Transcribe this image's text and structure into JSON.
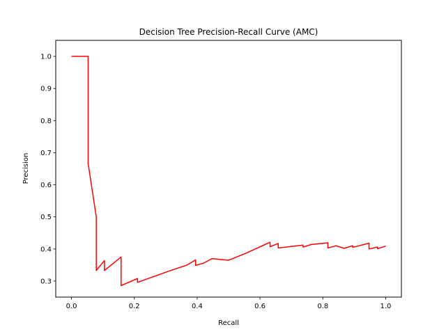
{
  "chart_data": {
    "type": "line",
    "title": "Decision Tree Precision-Recall Curve (AMC)",
    "xlabel": "Recall",
    "ylabel": "Precision",
    "xlim": [
      -0.05,
      1.05
    ],
    "ylim": [
      0.25,
      1.05
    ],
    "xticks": [
      0.0,
      0.2,
      0.4,
      0.6,
      0.8,
      1.0
    ],
    "xtick_labels": [
      "0.0",
      "0.2",
      "0.4",
      "0.6",
      "0.8",
      "1.0"
    ],
    "yticks": [
      0.3,
      0.4,
      0.5,
      0.6,
      0.7,
      0.8,
      0.9,
      1.0
    ],
    "ytick_labels": [
      "0.3",
      "0.4",
      "0.5",
      "0.6",
      "0.7",
      "0.8",
      "0.9",
      "1.0"
    ],
    "grid": false,
    "legend": "none",
    "series": [
      {
        "color": "#ff0000",
        "x": [
          0.0,
          0.053,
          0.053,
          0.079,
          0.079,
          0.105,
          0.105,
          0.158,
          0.158,
          0.21,
          0.21,
          0.316,
          0.368,
          0.395,
          0.395,
          0.421,
          0.447,
          0.5,
          0.553,
          0.632,
          0.632,
          0.658,
          0.658,
          0.737,
          0.737,
          0.763,
          0.816,
          0.816,
          0.842,
          0.868,
          0.895,
          0.895,
          0.947,
          0.947,
          0.974,
          0.974,
          1.0
        ],
        "y": [
          1.0,
          1.0,
          0.667,
          0.5,
          0.333,
          0.364,
          0.333,
          0.375,
          0.286,
          0.308,
          0.296,
          0.333,
          0.35,
          0.366,
          0.349,
          0.356,
          0.37,
          0.365,
          0.386,
          0.421,
          0.407,
          0.417,
          0.403,
          0.412,
          0.406,
          0.414,
          0.419,
          0.403,
          0.41,
          0.402,
          0.41,
          0.405,
          0.418,
          0.4,
          0.406,
          0.401,
          0.409
        ]
      }
    ]
  }
}
